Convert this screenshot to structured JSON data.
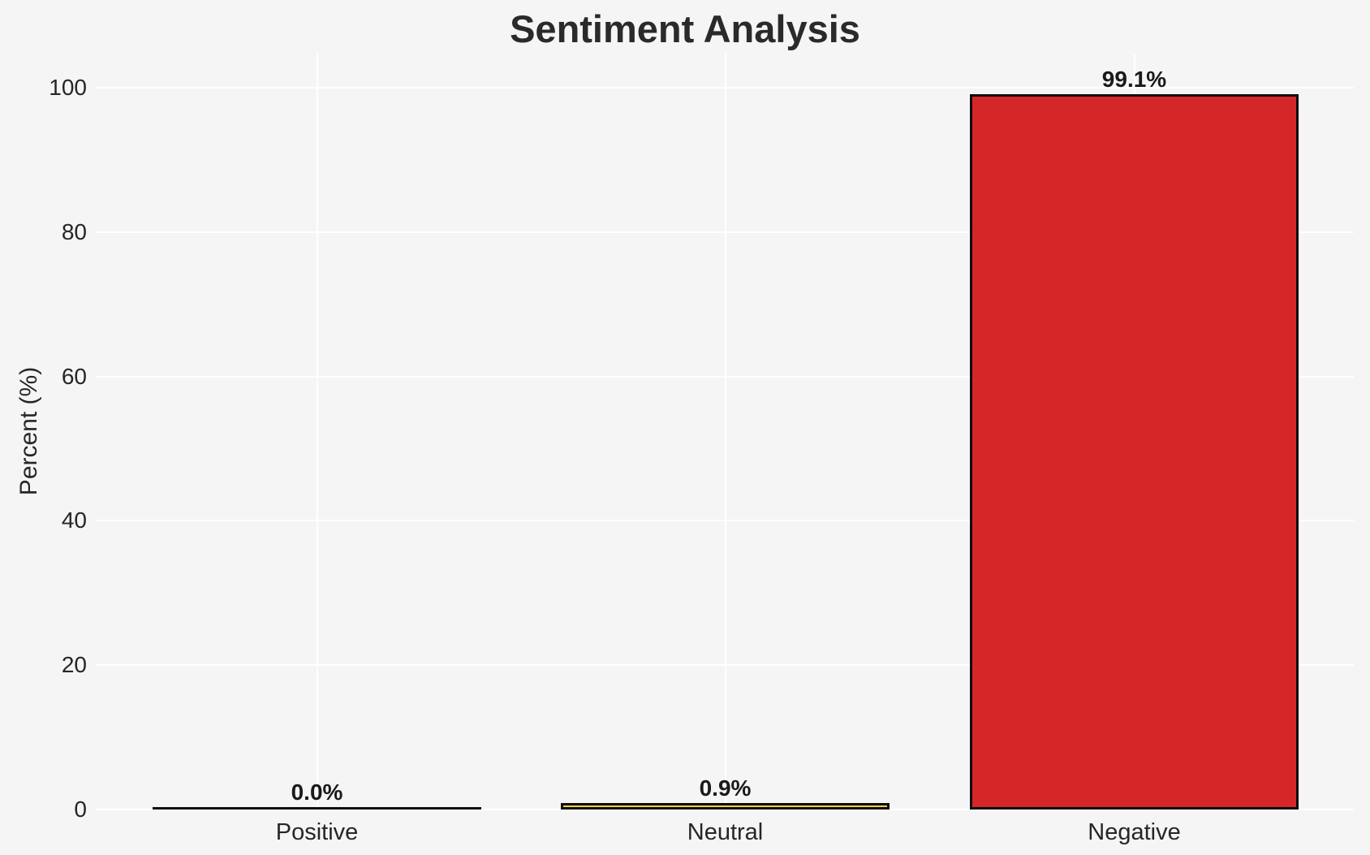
{
  "chart_data": {
    "type": "bar",
    "title": "Sentiment Analysis",
    "ylabel": "Percent (%)",
    "xlabel": "",
    "categories": [
      "Positive",
      "Neutral",
      "Negative"
    ],
    "values": [
      0.0,
      0.9,
      99.1
    ],
    "value_labels": [
      "0.0%",
      "0.9%",
      "99.1%"
    ],
    "bar_colors": [
      "#1a1a1a",
      "#f4d03f",
      "#d62728"
    ],
    "bar_edge_color": "#0d0d0d",
    "yticks": [
      0,
      20,
      40,
      60,
      80,
      100
    ],
    "ytick_labels": [
      "0",
      "20",
      "40",
      "60",
      "80",
      "100"
    ],
    "ylim": [
      0,
      104.7
    ],
    "grid": {
      "horizontal": true,
      "vertical_at_category_centers": true,
      "color": "#ffffff"
    },
    "legend": "none",
    "colors": {
      "background": "#f5f5f6",
      "axis_text": "#262626",
      "title_text": "#2a2a2a",
      "value_label_text": "#1a1a1a"
    }
  }
}
